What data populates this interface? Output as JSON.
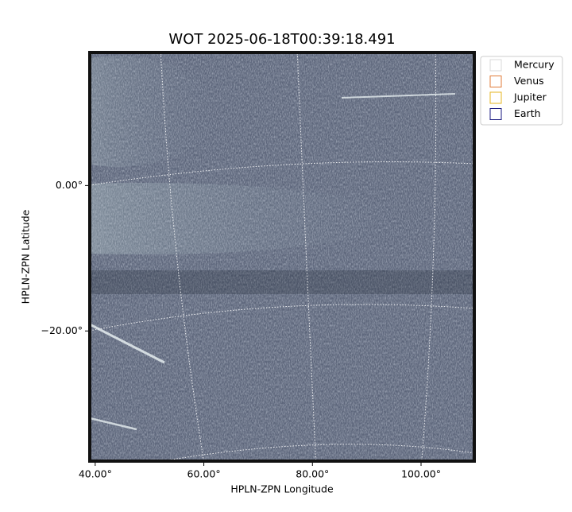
{
  "chart_data": {
    "type": "image",
    "title": "WOT 2025-06-18T00:39:18.491",
    "x_label": "HPLN-ZPN Longitude",
    "y_label": "HPLN-ZPN Latitude",
    "xlim": [
      39.0,
      109.8
    ],
    "ylim": [
      -37.9,
      18.3
    ],
    "xticks": [
      {
        "value": 40,
        "label": "40.00°"
      },
      {
        "value": 60,
        "label": "60.00°"
      },
      {
        "value": 80,
        "label": "80.00°"
      },
      {
        "value": 100,
        "label": "100.00°"
      }
    ],
    "yticks": [
      {
        "value": 0,
        "label": "0.00°"
      },
      {
        "value": -20,
        "label": "−20.00°"
      }
    ],
    "grid": true,
    "legend_position": "outside-right",
    "series": [
      {
        "name": "Mercury",
        "color": "#d9d9d9"
      },
      {
        "name": "Venus",
        "color": "#e07b39"
      },
      {
        "name": "Jupiter",
        "color": "#e6b422"
      },
      {
        "name": "Earth",
        "color": "#1a1a80"
      }
    ]
  }
}
